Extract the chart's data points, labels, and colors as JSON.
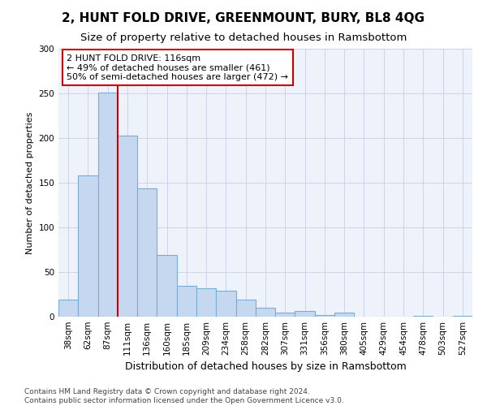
{
  "title": "2, HUNT FOLD DRIVE, GREENMOUNT, BURY, BL8 4QG",
  "subtitle": "Size of property relative to detached houses in Ramsbottom",
  "xlabel": "Distribution of detached houses by size in Ramsbottom",
  "ylabel": "Number of detached properties",
  "categories": [
    "38sqm",
    "62sqm",
    "87sqm",
    "111sqm",
    "136sqm",
    "160sqm",
    "185sqm",
    "209sqm",
    "234sqm",
    "258sqm",
    "282sqm",
    "307sqm",
    "331sqm",
    "356sqm",
    "380sqm",
    "405sqm",
    "429sqm",
    "454sqm",
    "478sqm",
    "503sqm",
    "527sqm"
  ],
  "bar_heights": [
    19,
    158,
    251,
    203,
    144,
    69,
    35,
    32,
    29,
    19,
    10,
    5,
    6,
    2,
    5,
    0,
    0,
    0,
    1,
    0,
    1
  ],
  "bar_color": "#c5d8f0",
  "bar_edge_color": "#7aadd4",
  "vline_index": 3,
  "vline_color": "#cc0000",
  "annotation_text": "2 HUNT FOLD DRIVE: 116sqm\n← 49% of detached houses are smaller (461)\n50% of semi-detached houses are larger (472) →",
  "annotation_box_color": "#ffffff",
  "annotation_box_edge": "#cc0000",
  "ylim": [
    0,
    300
  ],
  "yticks": [
    0,
    50,
    100,
    150,
    200,
    250,
    300
  ],
  "bg_color": "#eef2fa",
  "grid_color": "#c8cfe0",
  "footer": "Contains HM Land Registry data © Crown copyright and database right 2024.\nContains public sector information licensed under the Open Government Licence v3.0.",
  "title_fontsize": 11,
  "subtitle_fontsize": 9.5,
  "xlabel_fontsize": 9,
  "ylabel_fontsize": 8,
  "tick_fontsize": 7.5,
  "annotation_fontsize": 8,
  "footer_fontsize": 6.5
}
